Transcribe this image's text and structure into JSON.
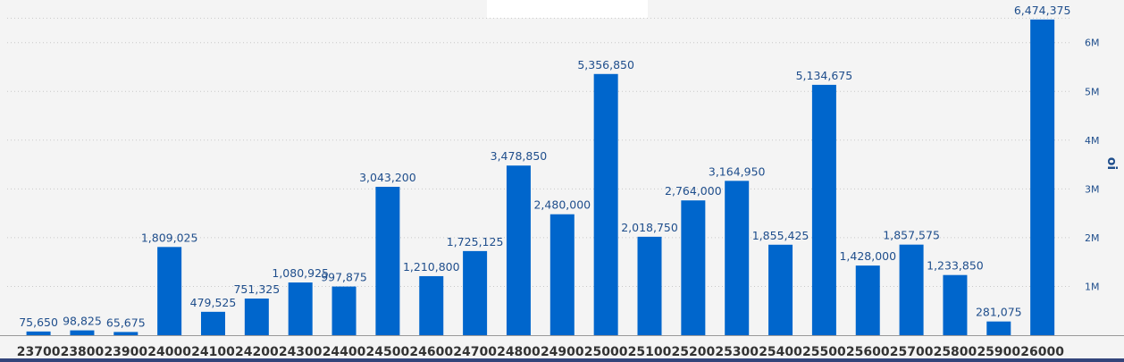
{
  "chart_data": {
    "type": "bar",
    "categories": [
      "23700",
      "23800",
      "23900",
      "24000",
      "24100",
      "24200",
      "24300",
      "24400",
      "24500",
      "24600",
      "24700",
      "24800",
      "24900",
      "25000",
      "25100",
      "25200",
      "25300",
      "25400",
      "25500",
      "25600",
      "25700",
      "25800",
      "25900",
      "26000"
    ],
    "values": [
      75650,
      98825,
      65675,
      1809025,
      479525,
      751325,
      1080925,
      997875,
      3043200,
      1210800,
      1725125,
      3478850,
      2480000,
      5356850,
      2018750,
      2764000,
      3164950,
      1855425,
      5134675,
      1428000,
      1857575,
      1233850,
      281075,
      6474375
    ],
    "data_labels": [
      "75,650",
      "98,825",
      "65,675",
      "1,809,025",
      "479,525",
      "751,325",
      "1,080,925",
      "997,875",
      "3,043,200",
      "1,210,800",
      "1,725,125",
      "3,478,850",
      "2,480,000",
      "5,356,850",
      "2,018,750",
      "2,764,000",
      "3,164,950",
      "1,855,425",
      "5,134,675",
      "1,428,000",
      "1,857,575",
      "1,233,850",
      "281,075",
      "6,474,375"
    ],
    "ylabel": "oi",
    "y_ticks": [
      1000000,
      2000000,
      3000000,
      4000000,
      5000000,
      6000000
    ],
    "y_tick_labels": [
      "1M",
      "2M",
      "3M",
      "4M",
      "5M",
      "6M"
    ],
    "ylim": [
      0,
      6500000
    ],
    "y_axis_position": "right",
    "grid": true,
    "bar_color": "#0066cc",
    "label_color": "#1f4e8c"
  }
}
